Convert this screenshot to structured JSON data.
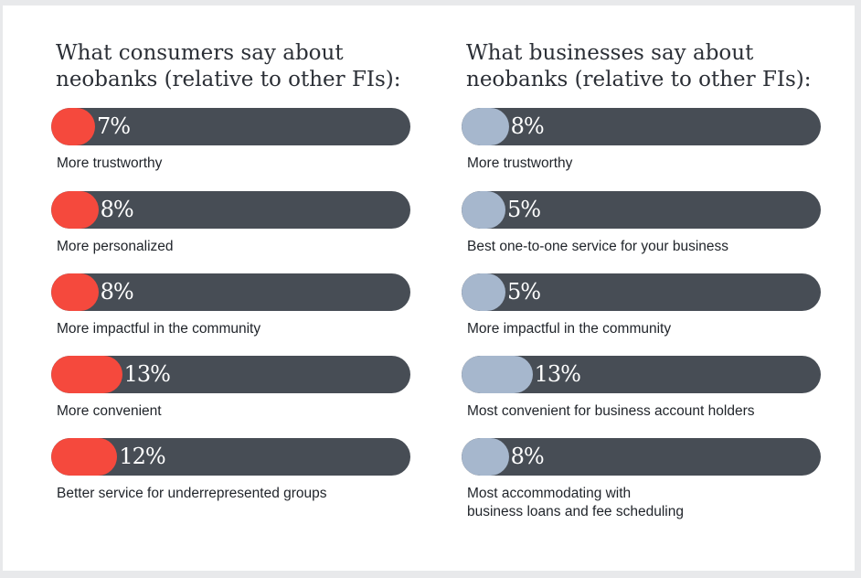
{
  "chart_data": [
    {
      "type": "bar",
      "title": "What consumers say about neobanks (relative to other FIs):",
      "categories": [
        "More trustworthy",
        "More personalized",
        "More impactful in the community",
        "More convenient",
        "Better service for underrepresented groups"
      ],
      "values": [
        7,
        8,
        8,
        13,
        12
      ],
      "value_labels": [
        "7%",
        "8%",
        "8%",
        "13%",
        "12%"
      ],
      "ylim": [
        0,
        100
      ],
      "fill_color": "#f5493d",
      "track_color": "#474d55"
    },
    {
      "type": "bar",
      "title": "What businesses say about neobanks (relative to other FIs):",
      "categories": [
        "More trustworthy",
        "Best one-to-one service for your business",
        "More impactful in the community",
        "Most convenient for business account holders",
        "Most accommodating with business loans and fee scheduling"
      ],
      "category_lines": [
        [
          "More trustworthy"
        ],
        [
          "Best one-to-one service for your business"
        ],
        [
          "More impactful in the community"
        ],
        [
          "Most convenient for business account holders"
        ],
        [
          "Most accommodating with",
          "business loans and fee scheduling"
        ]
      ],
      "values": [
        8,
        5,
        5,
        13,
        8
      ],
      "value_labels": [
        "8%",
        "5%",
        "5%",
        "13%",
        "8%"
      ],
      "ylim": [
        0,
        100
      ],
      "fill_color": "#a6b7cd",
      "track_color": "#474d55"
    }
  ]
}
